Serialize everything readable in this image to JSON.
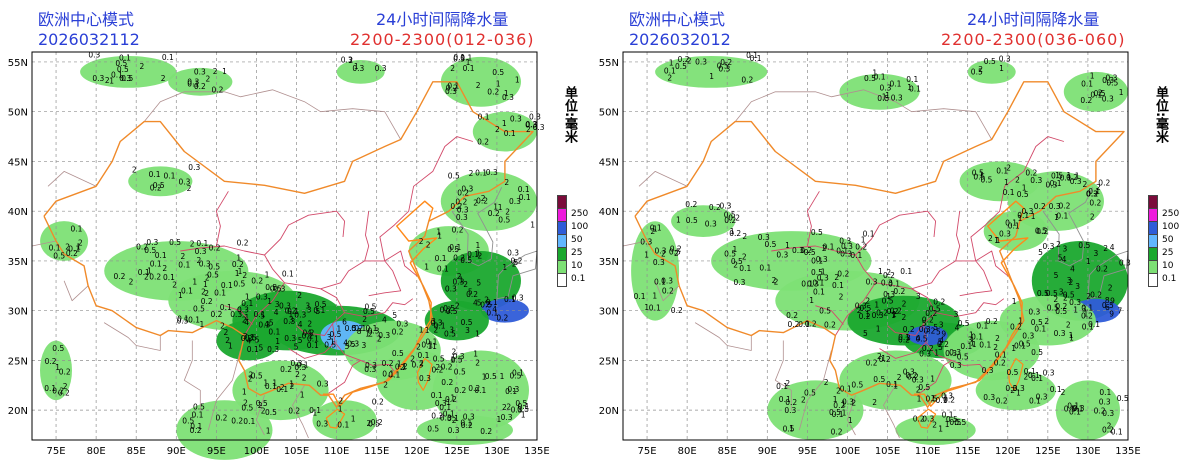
{
  "panels": [
    {
      "model": "欧洲中心模式",
      "init_time": "2026032112",
      "title": "24小时间隔降水量",
      "period": "2200-2300(012-036)"
    },
    {
      "model": "欧洲中心模式",
      "init_time": "2026032012",
      "title": "24小时间隔降水量",
      "period": "2200-2300(036-060)"
    }
  ],
  "unit_label": "单位:毫米",
  "legend": {
    "levels": [
      "250",
      "100",
      "50",
      "25",
      "10",
      "0.1"
    ],
    "colors": [
      "#7a0b3a",
      "#ee1bdc",
      "#2f5cd8",
      "#62b6ff",
      "#1aa82e",
      "#7de075",
      "#ffffff"
    ]
  },
  "lat_labels": [
    "55N",
    "50N",
    "45N",
    "40N",
    "35N",
    "30N",
    "25N",
    "20N"
  ],
  "lon_labels": [
    "75E",
    "80E",
    "85E",
    "90E",
    "95E",
    "100E",
    "105E",
    "110E",
    "115E",
    "120E",
    "125E",
    "130E",
    "135E"
  ],
  "map": {
    "lon_range": [
      72,
      135
    ],
    "lat_range": [
      17,
      56
    ],
    "grid_lon": [
      75,
      80,
      85,
      90,
      95,
      100,
      105,
      110,
      115,
      120,
      125,
      130,
      135
    ],
    "grid_lat": [
      20,
      25,
      30,
      35,
      40,
      45,
      50,
      55
    ]
  }
}
